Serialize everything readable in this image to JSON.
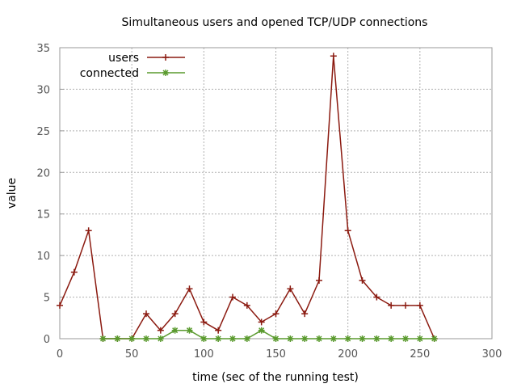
{
  "chart_data": {
    "type": "line",
    "title": "Simultaneous users and opened TCP/UDP connections",
    "xlabel": "time (sec of the running test)",
    "ylabel": "value",
    "xlim": [
      0,
      300
    ],
    "ylim": [
      0,
      35
    ],
    "xticks": [
      0,
      50,
      100,
      150,
      200,
      250,
      300
    ],
    "yticks": [
      0,
      5,
      10,
      15,
      20,
      25,
      30,
      35
    ],
    "grid": true,
    "legend_position": "top-left",
    "series": [
      {
        "name": "users",
        "color": "#8b1a10",
        "marker": "plus",
        "x": [
          0,
          10,
          20,
          30,
          40,
          50,
          60,
          70,
          80,
          90,
          100,
          110,
          120,
          130,
          140,
          150,
          160,
          170,
          180,
          190,
          200,
          210,
          220,
          230,
          240,
          250,
          260
        ],
        "y": [
          4,
          8,
          13,
          0,
          0,
          0,
          3,
          1,
          3,
          6,
          2,
          1,
          5,
          4,
          2,
          3,
          6,
          3,
          7,
          34,
          13,
          7,
          5,
          4,
          4,
          4,
          0
        ]
      },
      {
        "name": "connected",
        "color": "#5a9a2e",
        "marker": "star",
        "x": [
          30,
          40,
          50,
          60,
          70,
          80,
          90,
          100,
          110,
          120,
          130,
          140,
          150,
          160,
          170,
          180,
          190,
          200,
          210,
          220,
          230,
          240,
          250,
          260
        ],
        "y": [
          0,
          0,
          0,
          0,
          0,
          1,
          1,
          0,
          0,
          0,
          0,
          1,
          0,
          0,
          0,
          0,
          0,
          0,
          0,
          0,
          0,
          0,
          0,
          0
        ]
      }
    ]
  }
}
